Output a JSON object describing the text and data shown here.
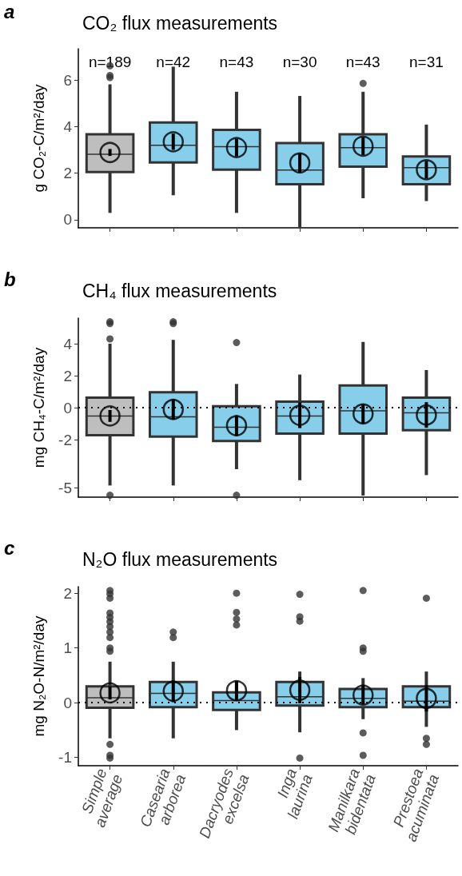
{
  "chart_data": [
    {
      "type": "box",
      "title": "CO₂ flux measurements",
      "ylabel": "g CO₂-C/m²/day",
      "annotations": [
        "a",
        "n=189",
        "n=42",
        "n=43",
        "n=30",
        "n=43",
        "n=31"
      ],
      "categories": [
        "Simple average",
        "Casearia arborea",
        "Dacryodes excelsa",
        "Inga laurina",
        "Manilkara bidentata",
        "Prestoea acuminata"
      ],
      "colors": [
        "#bebebe",
        "#87ceeb",
        "#87ceeb",
        "#87ceeb",
        "#87ceeb",
        "#87ceeb"
      ],
      "boxes": [
        {
          "low": 0.29,
          "q1": 2.05,
          "median": 2.81,
          "q3": 3.67,
          "high": 5.82,
          "outliers": [
            6.62,
            6.2,
            6.11
          ]
        },
        {
          "low": 1.05,
          "q1": 2.46,
          "median": 3.2,
          "q3": 4.18,
          "high": 6.58
        },
        {
          "low": 0.29,
          "q1": 2.15,
          "median": 3.14,
          "q3": 3.86,
          "high": 5.5
        },
        {
          "low": -0.32,
          "q1": 1.52,
          "median": 2.13,
          "q3": 3.29,
          "high": 5.32
        },
        {
          "low": 0.92,
          "q1": 2.28,
          "median": 3.1,
          "q3": 3.67,
          "high": 5.5,
          "outliers": [
            5.86
          ]
        },
        {
          "low": 0.8,
          "q1": 1.52,
          "median": 2.24,
          "q3": 2.72,
          "high": 4.09
        }
      ],
      "series": [
        {
          "type": "scatter",
          "color": "#000000",
          "x": [
            "Simple average",
            "Casearia arborea",
            "Dacryodes excelsa",
            "Inga laurina",
            "Manilkara bidentata",
            "Prestoea acuminata"
          ],
          "values": [
            2.89,
            3.35,
            3.1,
            2.44,
            3.16,
            2.15
          ],
          "errors": [
            0.15,
            0.35,
            0.38,
            0.41,
            0.38,
            0.38
          ]
        }
      ],
      "marker": "circle",
      "ylim": [
        -0.35,
        7.35
      ],
      "yticks": [
        0,
        2,
        4,
        6
      ],
      "grid": false,
      "tick_labels": "y"
    },
    {
      "type": "box",
      "title": "CH₄ flux measurements",
      "ylabel": "mg CH₄-C/m²/day",
      "annotations": [
        "b"
      ],
      "categories": [
        "Simple average",
        "Casearia arborea",
        "Dacryodes excelsa",
        "Inga laurina",
        "Manilkara bidentata",
        "Prestoea acuminata"
      ],
      "colors": [
        "#bebebe",
        "#87ceeb",
        "#87ceeb",
        "#87ceeb",
        "#87ceeb",
        "#87ceeb"
      ],
      "boxes": [
        {
          "low": -4.87,
          "q1": -1.72,
          "median": -0.52,
          "q3": 0.63,
          "high": 4.0,
          "outliers": [
            4.3,
            5.26,
            5.37,
            -5.48
          ]
        },
        {
          "low": -4.87,
          "q1": -1.81,
          "median": -0.57,
          "q3": 0.96,
          "high": 4.24,
          "outliers": [
            5.26,
            5.37
          ]
        },
        {
          "low": -3.85,
          "q1": -2.09,
          "median": -1.22,
          "q3": 0.09,
          "high": 1.48,
          "outliers": [
            4.07,
            -5.48
          ]
        },
        {
          "low": -4.54,
          "q1": -1.63,
          "median": -0.52,
          "q3": 0.37,
          "high": 2.07
        },
        {
          "low": -5.5,
          "q1": -1.63,
          "median": -0.2,
          "q3": 1.39,
          "high": 4.11
        },
        {
          "low": -4.22,
          "q1": -1.41,
          "median": -0.33,
          "q3": 0.63,
          "high": 2.35
        }
      ],
      "series": [
        {
          "type": "scatter",
          "color": "#000000",
          "x": [
            "Simple average",
            "Casearia arborea",
            "Dacryodes excelsa",
            "Inga laurina",
            "Manilkara bidentata",
            "Prestoea acuminata"
          ],
          "values": [
            -0.52,
            -0.11,
            -1.13,
            -0.48,
            -0.39,
            -0.46
          ],
          "errors": [
            0.37,
            0.65,
            0.65,
            0.8,
            0.6,
            0.8
          ]
        }
      ],
      "ref_lines": [
        {
          "axis": "y",
          "value": 0,
          "color": "#000000",
          "line_style": "dotted"
        }
      ],
      "marker": "circle",
      "ylim": [
        -5.6,
        5.6
      ],
      "yticks": [
        -5,
        -2,
        0,
        2,
        4
      ],
      "grid": false,
      "tick_labels": "y"
    },
    {
      "type": "box",
      "title": "N₂O flux measurements",
      "ylabel": "mg N₂O-N/m²/day",
      "annotations": [
        "c"
      ],
      "categories": [
        "Simple average",
        "Casearia arborea",
        "Dacryodes excelsa",
        "Inga laurina",
        "Manilkara bidentata",
        "Prestoea acuminata"
      ],
      "colors": [
        "#bebebe",
        "#87ceeb",
        "#87ceeb",
        "#87ceeb",
        "#87ceeb",
        "#87ceeb"
      ],
      "boxes": [
        {
          "low": -0.65,
          "q1": -0.09,
          "median": 0.09,
          "q3": 0.3,
          "high": 0.75,
          "outliers": [
            2.05,
            1.99,
            1.91,
            1.64,
            1.56,
            1.48,
            1.39,
            1.29,
            1.19,
            1.0,
            0.94,
            -0.76,
            -0.96,
            -1.01
          ]
        },
        {
          "low": -0.65,
          "q1": -0.08,
          "median": 0.17,
          "q3": 0.38,
          "high": 0.75,
          "outliers": [
            1.29,
            1.19
          ]
        },
        {
          "low": -0.5,
          "q1": -0.13,
          "median": 0.04,
          "q3": 0.19,
          "high": 0.38,
          "outliers": [
            2.0,
            1.65,
            1.53,
            1.42
          ]
        },
        {
          "low": -0.54,
          "q1": -0.05,
          "median": 0.11,
          "q3": 0.38,
          "high": 0.57,
          "outliers": [
            1.98,
            1.57,
            1.49,
            -1.01
          ]
        },
        {
          "low": -0.3,
          "q1": -0.08,
          "median": 0.08,
          "q3": 0.25,
          "high": 0.45,
          "outliers": [
            2.05,
            1.0,
            0.94,
            -0.55,
            -0.96
          ]
        },
        {
          "low": -0.44,
          "q1": -0.08,
          "median": 0.03,
          "q3": 0.3,
          "high": 0.57,
          "outliers": [
            1.91,
            -0.65,
            -0.76
          ]
        }
      ],
      "series": [
        {
          "type": "scatter",
          "color": "#000000",
          "x": [
            "Simple average",
            "Casearia arborea",
            "Dacryodes excelsa",
            "Inga laurina",
            "Manilkara bidentata",
            "Prestoea acuminata"
          ],
          "values": [
            0.18,
            0.21,
            0.22,
            0.23,
            0.14,
            0.08
          ],
          "errors": [
            0.12,
            0.2,
            0.18,
            0.24,
            0.17,
            0.24
          ]
        }
      ],
      "ref_lines": [
        {
          "axis": "y",
          "value": 0,
          "color": "#000000",
          "line_style": "dotted"
        }
      ],
      "marker": "circle",
      "ylim": [
        -1.15,
        2.12
      ],
      "yticks": [
        -1,
        0,
        1,
        2
      ],
      "grid": false
    }
  ]
}
